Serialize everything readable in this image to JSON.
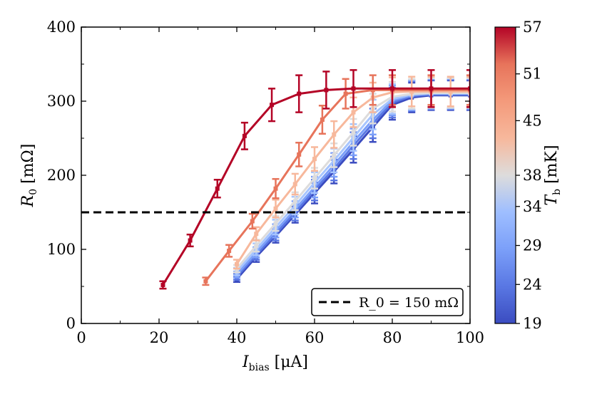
{
  "chart_data": {
    "type": "line",
    "title": "",
    "xlabel": "I_bias [μA]",
    "ylabel": "R_0 [mΩ]",
    "xlabel_parts": {
      "main": "I",
      "sub": "bias",
      "unit": " [μA]"
    },
    "ylabel_parts": {
      "main": "R",
      "sub": "0",
      "unit": " [mΩ]"
    },
    "xlim": [
      0,
      100
    ],
    "ylim": [
      0,
      400
    ],
    "xticks": [
      "0",
      "20",
      "40",
      "60",
      "80",
      "100"
    ],
    "yticks": [
      "0",
      "100",
      "200",
      "300",
      "400"
    ],
    "grid": false,
    "reference_line": {
      "y": 150,
      "style": "dashed",
      "color": "#000000",
      "label": "R_0 = 150 mΩ"
    },
    "legend": {
      "placement": "lower-right",
      "entries": [
        "R_0 = 150 mΩ"
      ]
    },
    "colorbar": {
      "label": "T_b [mK]",
      "label_parts": {
        "main": "T",
        "sub": "b",
        "unit": " [mK]"
      },
      "range": [
        19,
        57
      ],
      "ticks": [
        "19",
        "24",
        "29",
        "34",
        "38",
        "45",
        "51",
        "57"
      ],
      "tick_values": [
        19,
        24,
        29,
        34,
        38,
        45,
        51,
        57
      ],
      "colormap": "coolwarm"
    },
    "series": [
      {
        "temperature": 19,
        "color": "#3b4cc0",
        "x": [
          40,
          45,
          50,
          55,
          60,
          65,
          70,
          75,
          80,
          85,
          90,
          95,
          100
        ],
        "y": [
          60,
          90,
          118,
          147,
          176,
          205,
          235,
          265,
          295,
          305,
          308,
          308,
          308
        ],
        "err": [
          4,
          7,
          9,
          11,
          14,
          16,
          18,
          20,
          20,
          20,
          20,
          20,
          20
        ]
      },
      {
        "temperature": 24,
        "color": "#5977e3",
        "x": [
          40,
          45,
          50,
          55,
          60,
          65,
          70,
          75,
          80,
          85,
          90,
          95,
          100
        ],
        "y": [
          63,
          93,
          121,
          150,
          180,
          209,
          240,
          270,
          298,
          307,
          309,
          309,
          309
        ],
        "err": [
          4,
          7,
          9,
          11,
          14,
          16,
          18,
          20,
          20,
          20,
          20,
          20,
          20
        ]
      },
      {
        "temperature": 29,
        "color": "#7b9ff9",
        "x": [
          40,
          45,
          50,
          55,
          60,
          65,
          70,
          75,
          80,
          85,
          90,
          95,
          100
        ],
        "y": [
          66,
          96,
          125,
          154,
          184,
          214,
          245,
          275,
          301,
          308,
          310,
          310,
          310
        ],
        "err": [
          4,
          7,
          9,
          11,
          14,
          16,
          18,
          20,
          20,
          20,
          20,
          20,
          20
        ]
      },
      {
        "temperature": 34,
        "color": "#a7c5fe",
        "x": [
          40,
          45,
          50,
          55,
          60,
          65,
          70,
          75,
          80,
          85,
          90,
          95,
          100
        ],
        "y": [
          70,
          100,
          130,
          159,
          190,
          220,
          251,
          282,
          303,
          309,
          311,
          311,
          311
        ],
        "err": [
          5,
          8,
          10,
          12,
          14,
          16,
          18,
          20,
          20,
          20,
          20,
          20,
          20
        ]
      },
      {
        "temperature": 38,
        "color": "#dddcdc",
        "x": [
          40,
          45,
          50,
          55,
          60,
          65,
          70,
          75,
          80,
          85,
          90,
          95,
          100
        ],
        "y": [
          74,
          105,
          135,
          165,
          196,
          227,
          258,
          290,
          306,
          310,
          311,
          311,
          311
        ],
        "err": [
          5,
          8,
          10,
          12,
          14,
          16,
          18,
          20,
          20,
          20,
          20,
          20,
          20
        ]
      },
      {
        "temperature": 45,
        "color": "#f7b89c",
        "x": [
          40,
          45,
          50,
          55,
          60,
          65,
          70,
          75,
          80,
          85,
          90,
          95,
          100
        ],
        "y": [
          80,
          121,
          155,
          188,
          222,
          255,
          285,
          305,
          312,
          313,
          313,
          313,
          313
        ],
        "err": [
          6,
          9,
          12,
          14,
          16,
          18,
          20,
          20,
          20,
          20,
          20,
          20,
          20
        ]
      },
      {
        "temperature": 51,
        "color": "#e7745b",
        "x": [
          32,
          38,
          44,
          50,
          56,
          62,
          68,
          75,
          80,
          90,
          100
        ],
        "y": [
          57,
          98,
          138,
          182,
          228,
          275,
          310,
          315,
          315,
          315,
          315
        ],
        "err": [
          5,
          8,
          10,
          13,
          16,
          19,
          20,
          20,
          20,
          20,
          20
        ]
      },
      {
        "temperature": 57,
        "color": "#b40426",
        "x": [
          21,
          28,
          35,
          42,
          49,
          56,
          63,
          70,
          80,
          90,
          100
        ],
        "y": [
          52,
          112,
          182,
          253,
          295,
          310,
          315,
          317,
          317,
          317,
          317
        ],
        "err": [
          5,
          8,
          12,
          18,
          22,
          25,
          25,
          25,
          25,
          25,
          25
        ]
      }
    ]
  }
}
